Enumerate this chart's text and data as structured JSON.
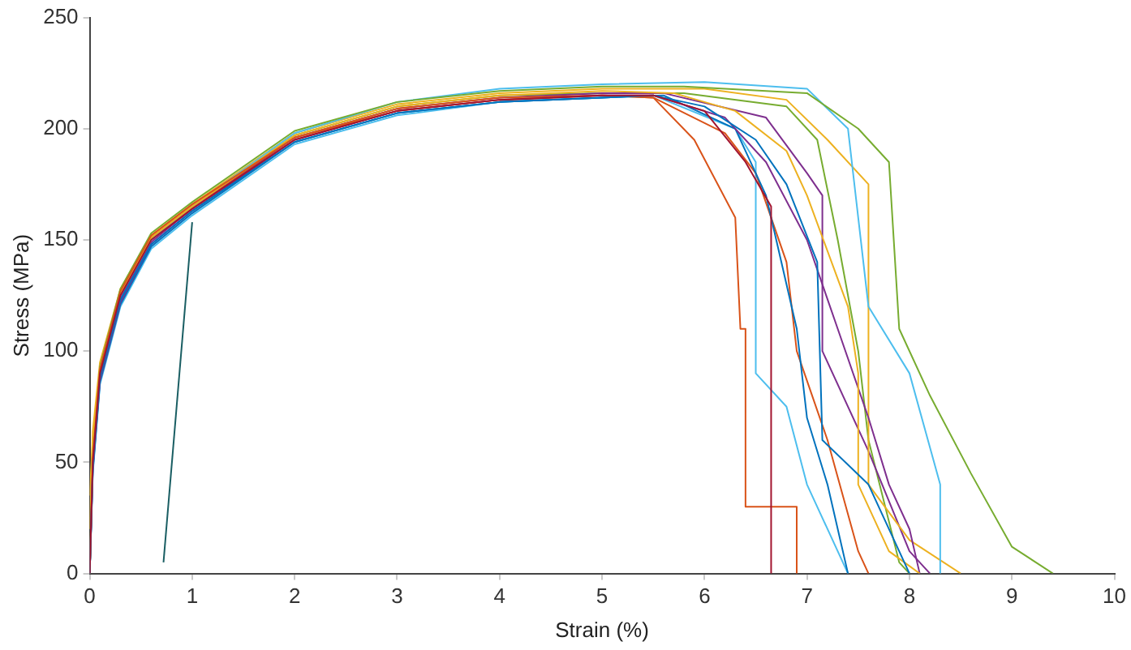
{
  "chart_data": {
    "type": "line",
    "xlabel": "Strain (%)",
    "ylabel": "Stress (MPa)",
    "xlim": [
      0,
      10
    ],
    "ylim": [
      0,
      250
    ],
    "xticks": [
      0,
      1,
      2,
      3,
      4,
      5,
      6,
      7,
      8,
      9,
      10
    ],
    "yticks": [
      0,
      50,
      100,
      150,
      200,
      250
    ],
    "grid": false,
    "legend": false,
    "marker": "none",
    "line_style": "solid",
    "series": [
      {
        "color": "#a2142f",
        "x": [
          0,
          0.03,
          0.1,
          0.3,
          0.6,
          1,
          2,
          3,
          4,
          5,
          5.5,
          6.0,
          6.4,
          6.65,
          6.65
        ],
        "values": [
          0,
          50,
          90,
          125,
          150,
          164,
          195,
          208,
          213,
          215,
          215,
          208,
          185,
          165,
          0
        ]
      },
      {
        "color": "#0072bd",
        "x": [
          0,
          0.03,
          0.1,
          0.3,
          0.6,
          1,
          2,
          3,
          4,
          5,
          5.5,
          6.0,
          6.5,
          6.8,
          7.1,
          7.15,
          7.6,
          8.0
        ],
        "values": [
          0,
          48,
          88,
          123,
          148,
          163,
          194,
          207,
          212,
          214,
          215,
          210,
          195,
          175,
          140,
          60,
          40,
          0
        ]
      },
      {
        "color": "#d95319",
        "x": [
          0,
          0.03,
          0.1,
          0.3,
          0.6,
          1,
          2,
          3,
          4,
          5,
          5.5,
          5.9,
          6.3,
          6.35,
          6.4,
          6.4,
          6.9,
          6.9
        ],
        "values": [
          0,
          52,
          92,
          127,
          152,
          166,
          196,
          208,
          213,
          215,
          214,
          195,
          160,
          110,
          110,
          30,
          30,
          0
        ]
      },
      {
        "color": "#edb120",
        "x": [
          0,
          0.03,
          0.1,
          0.3,
          0.6,
          1,
          2,
          3,
          4,
          5,
          5.7,
          6.3,
          6.8,
          7.0,
          7.4,
          7.5,
          7.5,
          7.8,
          8.1
        ],
        "values": [
          35,
          60,
          92,
          126,
          151,
          165,
          197,
          210,
          215,
          217,
          216,
          208,
          190,
          170,
          120,
          90,
          40,
          10,
          0
        ]
      },
      {
        "color": "#7e2f8e",
        "x": [
          0,
          0.03,
          0.1,
          0.3,
          0.6,
          1,
          2,
          3,
          4,
          5,
          5.5,
          6.2,
          6.6,
          7.0,
          7.3,
          7.6,
          7.8,
          8.0,
          8.1
        ],
        "values": [
          0,
          47,
          87,
          122,
          148,
          163,
          195,
          208,
          213,
          215,
          215,
          205,
          185,
          150,
          110,
          70,
          40,
          20,
          0
        ]
      },
      {
        "color": "#77ac30",
        "x": [
          0,
          0.03,
          0.1,
          0.3,
          0.6,
          1,
          2,
          3,
          4,
          5,
          5.8,
          7.0,
          7.5,
          7.8,
          7.9,
          8.2,
          8.6,
          9.0,
          9.4
        ],
        "values": [
          0,
          53,
          93,
          128,
          153,
          167,
          199,
          212,
          217,
          219,
          219,
          216,
          200,
          185,
          110,
          80,
          45,
          12,
          0
        ]
      },
      {
        "color": "#4dbeee",
        "x": [
          0,
          0.03,
          0.1,
          0.3,
          0.6,
          1,
          2,
          3,
          4,
          5,
          6.0,
          7.0,
          7.4,
          7.5,
          7.6,
          8.0,
          8.3,
          8.3
        ],
        "values": [
          0,
          49,
          89,
          125,
          150,
          165,
          198,
          212,
          218,
          220,
          221,
          218,
          200,
          160,
          120,
          90,
          40,
          0
        ]
      },
      {
        "color": "#0072bd",
        "x": [
          0,
          0.03,
          0.1,
          0.3,
          0.6,
          1,
          2,
          3,
          4,
          5,
          5.6,
          6.3,
          6.6,
          6.9,
          7.0,
          7.2,
          7.4
        ],
        "values": [
          0,
          46,
          86,
          121,
          147,
          162,
          194,
          207,
          212,
          214,
          215,
          200,
          170,
          110,
          70,
          40,
          0
        ]
      },
      {
        "color": "#d95319",
        "x": [
          0,
          0.03,
          0.1,
          0.3,
          0.6,
          1,
          2,
          3,
          4,
          5,
          5.5,
          6.2,
          6.5,
          6.8,
          6.9,
          7.2,
          7.5,
          7.6
        ],
        "values": [
          0,
          51,
          91,
          126,
          151,
          165,
          196,
          209,
          214,
          215,
          214,
          198,
          180,
          140,
          100,
          60,
          10,
          0
        ]
      },
      {
        "color": "#edb120",
        "x": [
          0,
          0.03,
          0.1,
          0.3,
          0.6,
          1,
          2,
          3,
          4,
          5,
          6.0,
          6.8,
          7.2,
          7.6,
          7.6,
          8.0,
          8.5
        ],
        "values": [
          20,
          64,
          95,
          128,
          152,
          166,
          198,
          211,
          216,
          218,
          218,
          213,
          195,
          175,
          40,
          15,
          0
        ]
      },
      {
        "color": "#4dbeee",
        "x": [
          0,
          0.03,
          0.1,
          0.3,
          0.6,
          1,
          2,
          3,
          4,
          5,
          5.5,
          6.3,
          6.5,
          6.5,
          6.8,
          7.0,
          7.4
        ],
        "values": [
          0,
          45,
          85,
          120,
          146,
          161,
          193,
          206,
          212,
          214,
          215,
          200,
          185,
          90,
          75,
          40,
          0
        ]
      },
      {
        "color": "#7e2f8e",
        "x": [
          0,
          0.03,
          0.1,
          0.3,
          0.6,
          1,
          2,
          3,
          4,
          5,
          5.6,
          6.6,
          7.0,
          7.15,
          7.15,
          7.6,
          8.0,
          8.2
        ],
        "values": [
          0,
          48,
          88,
          124,
          149,
          164,
          196,
          209,
          214,
          216,
          216,
          205,
          180,
          170,
          100,
          55,
          10,
          0
        ]
      },
      {
        "color": "#77ac30",
        "x": [
          0,
          0.03,
          0.1,
          0.3,
          0.6,
          1,
          2,
          3,
          4,
          5,
          5.8,
          6.8,
          7.1,
          7.3,
          7.5,
          7.6,
          7.9,
          8.0
        ],
        "values": [
          0,
          51,
          91,
          126,
          151,
          165,
          197,
          210,
          215,
          216,
          216,
          210,
          195,
          150,
          100,
          60,
          5,
          0
        ]
      },
      {
        "color": "#1a5e63",
        "x": [
          0.72,
          1.0
        ],
        "values": [
          5,
          158
        ]
      }
    ]
  }
}
